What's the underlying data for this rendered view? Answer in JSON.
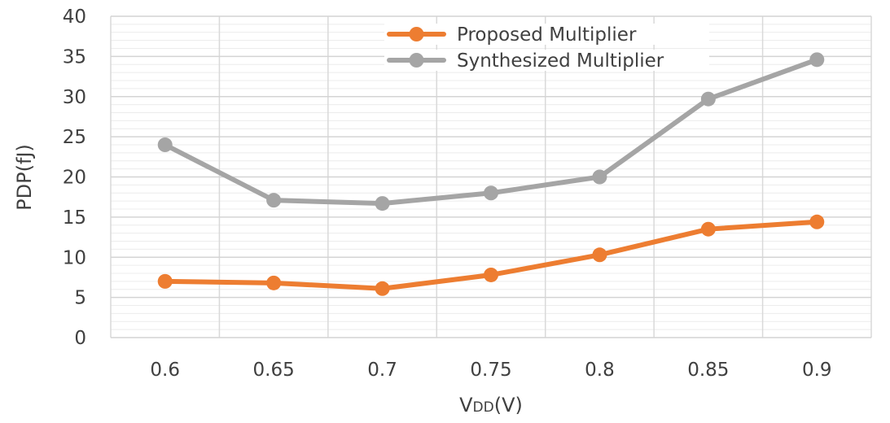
{
  "chart_data": {
    "type": "line",
    "title": "",
    "xlabel_main": "V",
    "xlabel_sub": "DD",
    "xlabel_suffix": "(V)",
    "ylabel": "PDP(fJ)",
    "x": [
      "0.6",
      "0.65",
      "0.7",
      "0.75",
      "0.8",
      "0.85",
      "0.9"
    ],
    "ylim": [
      0,
      40
    ],
    "yticks": [
      0,
      5,
      10,
      15,
      20,
      25,
      30,
      35,
      40
    ],
    "grid": true,
    "legend_position": "top-center",
    "series": [
      {
        "name": "Proposed Multiplier",
        "color": "#ED7D31",
        "values": [
          7.0,
          6.8,
          6.1,
          7.8,
          10.3,
          13.5,
          14.4
        ]
      },
      {
        "name": "Synthesized Multiplier",
        "color": "#A5A5A5",
        "values": [
          24.0,
          17.1,
          16.7,
          18.0,
          20.0,
          29.7,
          34.6
        ]
      }
    ]
  }
}
